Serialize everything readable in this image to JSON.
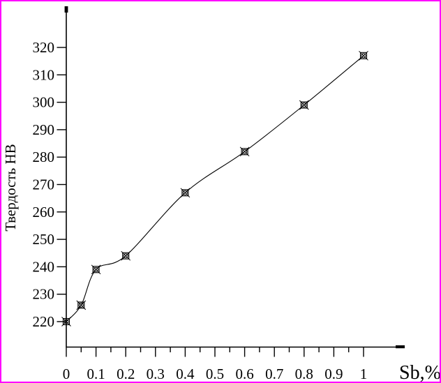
{
  "figure": {
    "border_color": "#FF00FF",
    "background": "#FFFFFF"
  },
  "chart_data": {
    "type": "line",
    "title": "",
    "xlabel": "Sb,%",
    "ylabel": "Твердость НВ",
    "x": [
      0,
      0.05,
      0.1,
      0.2,
      0.4,
      0.6,
      0.8,
      1.0
    ],
    "y": [
      220,
      226,
      239,
      244,
      267,
      282,
      299,
      317
    ],
    "xlim": [
      0,
      1.14
    ],
    "ylim": [
      210,
      335
    ],
    "x_major_ticks": [
      0,
      0.1,
      0.2,
      0.3,
      0.4,
      0.5,
      0.6,
      0.7,
      0.8,
      0.9,
      1
    ],
    "x_tick_labels": [
      "0",
      "0.1",
      "0.2",
      "0.3",
      "0.4",
      "0.5",
      "0.6",
      "0.7",
      "0.8",
      "0.9",
      "1"
    ],
    "x_minor_ticks": [
      0.05,
      0.15,
      0.25,
      0.35,
      0.45,
      0.55,
      0.65,
      0.75,
      0.85,
      0.95
    ],
    "y_ticks": [
      220,
      230,
      240,
      250,
      260,
      270,
      280,
      290,
      300,
      310,
      320
    ],
    "y_tick_labels": [
      "220",
      "230",
      "240",
      "250",
      "260",
      "270",
      "280",
      "290",
      "300",
      "310",
      "320"
    ],
    "marker": "square-with-circle-and-diagonal-cross",
    "line_color": "#000000",
    "marker_color": "#000000",
    "grid": false,
    "legend": null
  }
}
